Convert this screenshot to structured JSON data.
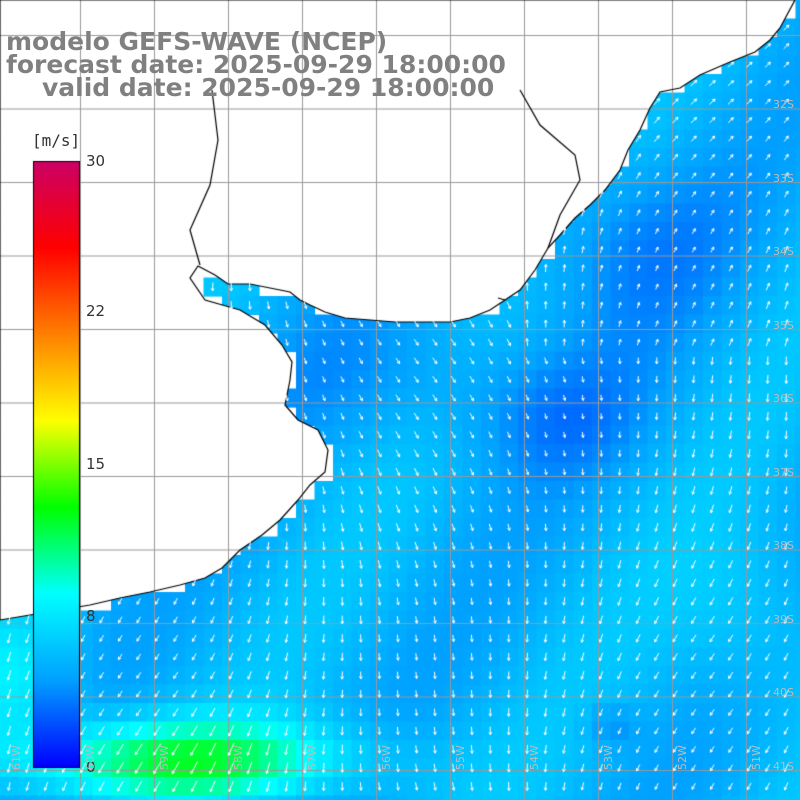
{
  "header": {
    "line1": "modelo GEFS-WAVE (NCEP)",
    "line2": "forecast date: 2025-09-29 18:00:00",
    "line3": "valid date: 2025-09-29 18:00:00"
  },
  "colorbar": {
    "unit": "[m/s]",
    "ticks": [
      {
        "label": "30",
        "value": 30
      },
      {
        "label": "22",
        "value": 22
      },
      {
        "label": "15",
        "value": 15
      },
      {
        "label": "8",
        "value": 8
      },
      {
        "label": "0",
        "value": 0
      }
    ],
    "colors": [
      "#0000ff",
      "#00a0ff",
      "#00ffff",
      "#00ff00",
      "#ffff00",
      "#ff8000",
      "#ff0000",
      "#cc0066"
    ]
  },
  "map": {
    "land_color": "#ffffff",
    "grid_color": "#999999",
    "coast_color": "#000000",
    "arrow_color": "#ffffff",
    "lat_labels": [
      "32S",
      "33S",
      "34S",
      "35S",
      "36S",
      "37S",
      "38S",
      "39S",
      "40S",
      "41S"
    ],
    "lon_labels": [
      "61W",
      "60W",
      "59W",
      "58W",
      "57W",
      "56W",
      "55W",
      "54W",
      "53W",
      "52W",
      "51W"
    ]
  }
}
